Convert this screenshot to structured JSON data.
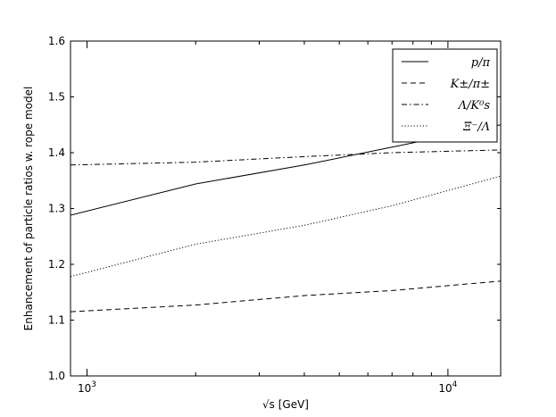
{
  "chart_data": {
    "type": "line",
    "xscale": "log",
    "xlim": [
      900,
      14000
    ],
    "ylim": [
      1.0,
      1.6
    ],
    "xlabel": "√s [GeV]",
    "ylabel": "Enhancement of particle ratios w. rope model",
    "x_ticks": [
      {
        "value": 1000,
        "base": "10",
        "exp": "3"
      },
      {
        "value": 10000,
        "base": "10",
        "exp": "4"
      }
    ],
    "y_ticks": [
      "1.0",
      "1.1",
      "1.2",
      "1.3",
      "1.4",
      "1.5",
      "1.6"
    ],
    "legend_position": "top-right",
    "series": [
      {
        "name": "p/π",
        "style": "solid",
        "x": [
          900,
          2000,
          4000,
          7000,
          14000
        ],
        "values": [
          1.288,
          1.344,
          1.378,
          1.41,
          1.45
        ]
      },
      {
        "name": "K±/π±",
        "style": "dashed",
        "x": [
          900,
          2000,
          4000,
          7000,
          14000
        ],
        "values": [
          1.115,
          1.127,
          1.144,
          1.153,
          1.17
        ]
      },
      {
        "name": "Λ/K⁰s",
        "style": "dashdot",
        "x": [
          900,
          2000,
          4000,
          7000,
          14000
        ],
        "values": [
          1.378,
          1.383,
          1.393,
          1.4,
          1.405
        ]
      },
      {
        "name": "Ξ⁻/Λ",
        "style": "dotted",
        "x": [
          900,
          2000,
          4000,
          7000,
          14000
        ],
        "values": [
          1.178,
          1.236,
          1.27,
          1.305,
          1.358
        ]
      }
    ]
  }
}
